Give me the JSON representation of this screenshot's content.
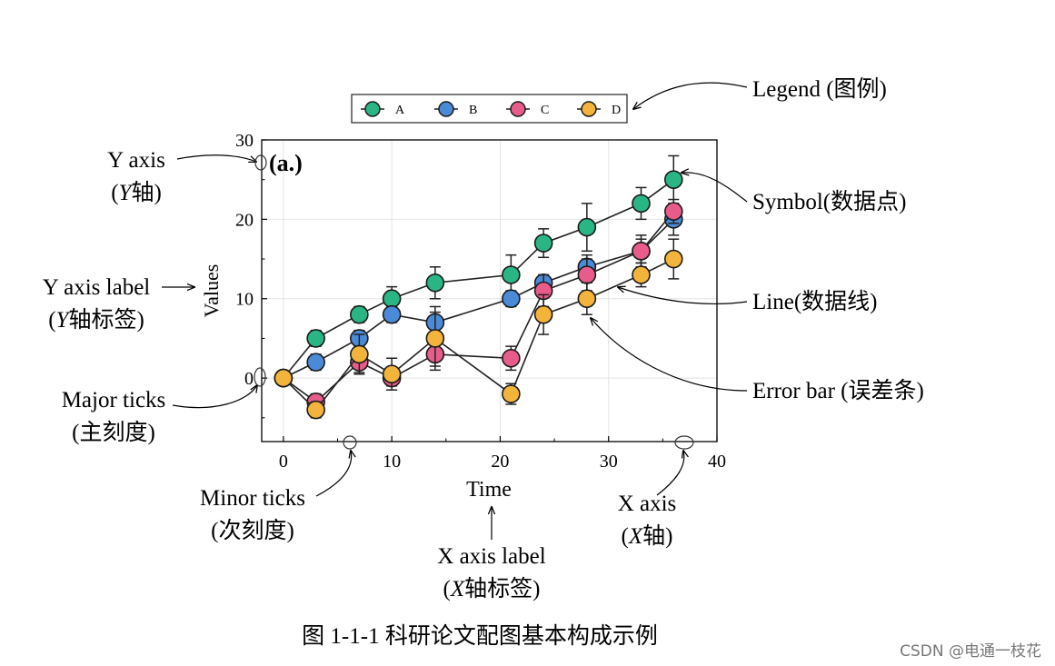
{
  "chart_data": {
    "type": "line",
    "title": "(a.)",
    "xlabel": "Time",
    "ylabel": "Values",
    "xlim": [
      -2,
      40
    ],
    "ylim": [
      -8,
      30
    ],
    "xticks": [
      0,
      10,
      20,
      30,
      40
    ],
    "yticks": [
      0,
      10,
      20,
      30
    ],
    "grid": true,
    "legend_position": "top-center",
    "x": [
      0,
      3,
      7,
      10,
      14,
      21,
      24,
      28,
      33,
      36
    ],
    "series": [
      {
        "name": "A",
        "color": "#2ab584",
        "values": [
          0,
          5,
          8,
          10,
          12,
          13,
          17,
          19,
          22,
          25
        ],
        "errors": [
          0,
          1,
          1,
          1.5,
          2,
          2.5,
          1.8,
          3,
          2,
          3
        ]
      },
      {
        "name": "B",
        "color": "#4b8ad6",
        "values": [
          0,
          2,
          5,
          8,
          7,
          10,
          12,
          14,
          16,
          20
        ],
        "errors": [
          0,
          1,
          1,
          1,
          1.3,
          1,
          1,
          1.5,
          1.5,
          2
        ]
      },
      {
        "name": "C",
        "color": "#e85c8c",
        "values": [
          0,
          -3,
          2,
          0,
          3,
          2.5,
          11,
          13,
          16,
          21
        ],
        "errors": [
          0,
          1,
          1.3,
          1,
          1.5,
          1.5,
          2,
          2,
          2,
          1.5
        ]
      },
      {
        "name": "D",
        "color": "#f3b43c",
        "values": [
          0,
          -4,
          3,
          0.5,
          5,
          -2,
          8,
          10,
          13,
          15
        ],
        "errors": [
          0,
          1,
          2.5,
          2,
          4,
          1.3,
          2.5,
          2,
          1.5,
          2.5
        ]
      }
    ]
  },
  "annotations": {
    "legend": "Legend (图例)",
    "y_axis": "Y axis",
    "y_axis_cn_open": "(",
    "y_axis_cn_letter": "Y",
    "y_axis_cn_rest": "轴)",
    "y_axis_label": "Y axis label",
    "y_axis_label_cn_open": "(",
    "y_axis_label_cn_letter": "Y",
    "y_axis_label_cn_rest": "轴标签)",
    "major_ticks": "Major ticks",
    "major_ticks_cn": "(主刻度)",
    "minor_ticks": "Minor ticks",
    "minor_ticks_cn": "(次刻度)",
    "symbol": "Symbol(数据点)",
    "line": "Line(数据线)",
    "error_bar": "Error bar (误差条)",
    "x_axis": "X axis",
    "x_axis_cn_open": "(",
    "x_axis_cn_letter": "X",
    "x_axis_cn_rest": "轴)",
    "x_axis_label": "X axis label",
    "x_axis_label_cn_open": "(",
    "x_axis_label_cn_letter": "X",
    "x_axis_label_cn_rest": "轴标签)"
  },
  "caption": "图 1-1-1    科研论文配图基本构成示例",
  "watermark": "CSDN @电通一枝花"
}
